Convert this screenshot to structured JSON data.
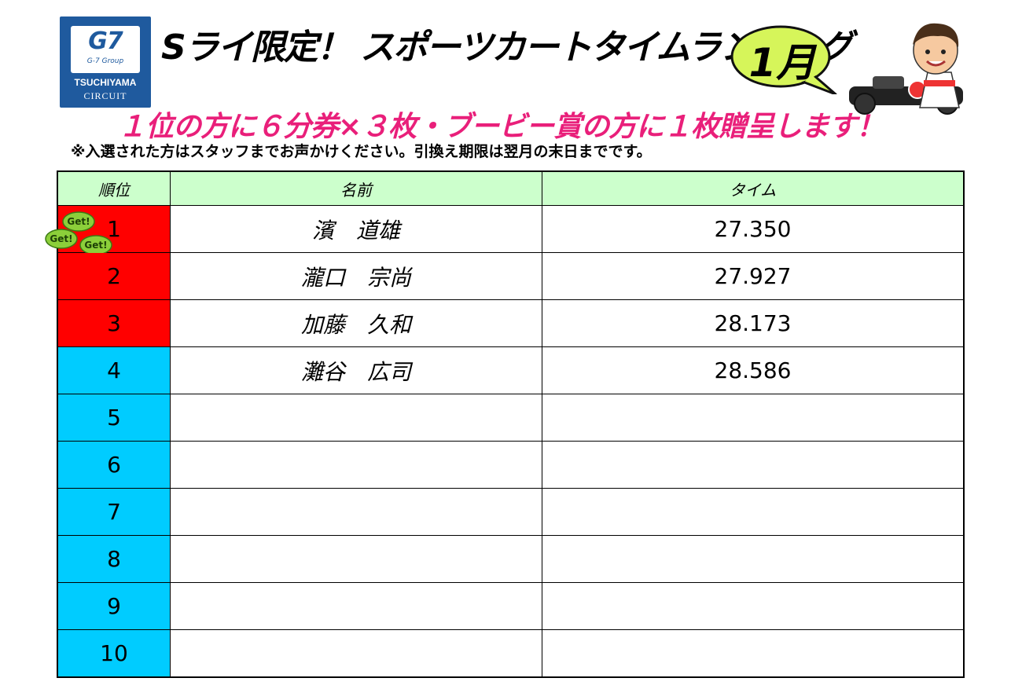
{
  "logo": {
    "brand": "G7",
    "group": "G-7 Group",
    "line1": "TSUCHIYAMA",
    "line2": "CIRCUIT"
  },
  "title": "Sライ限定！ スポーツカートタイムランキング",
  "month": "1月",
  "promo": "１位の方に６分券×３枚・ブービー賞の方に１枚贈呈します！",
  "note": "※入選された方はスタッフまでお声かけください。引換え期限は翌月の末日までです。",
  "table": {
    "headers": [
      "順位",
      "名前",
      "タイム"
    ],
    "badge": "Get!",
    "rows": [
      {
        "rank": "1",
        "name": "濱　道雄",
        "time": "27.350",
        "color": "#ff0000"
      },
      {
        "rank": "2",
        "name": "瀧口　宗尚",
        "time": "27.927",
        "color": "#ff0000"
      },
      {
        "rank": "3",
        "name": "加藤　久和",
        "time": "28.173",
        "color": "#ff0000"
      },
      {
        "rank": "4",
        "name": "灘谷　広司",
        "time": "28.586",
        "color": "#00ccff"
      },
      {
        "rank": "5",
        "name": "",
        "time": "",
        "color": "#00ccff"
      },
      {
        "rank": "6",
        "name": "",
        "time": "",
        "color": "#00ccff"
      },
      {
        "rank": "7",
        "name": "",
        "time": "",
        "color": "#00ccff"
      },
      {
        "rank": "8",
        "name": "",
        "time": "",
        "color": "#00ccff"
      },
      {
        "rank": "9",
        "name": "",
        "time": "",
        "color": "#00ccff"
      },
      {
        "rank": "10",
        "name": "",
        "time": "",
        "color": "#00ccff"
      }
    ]
  }
}
